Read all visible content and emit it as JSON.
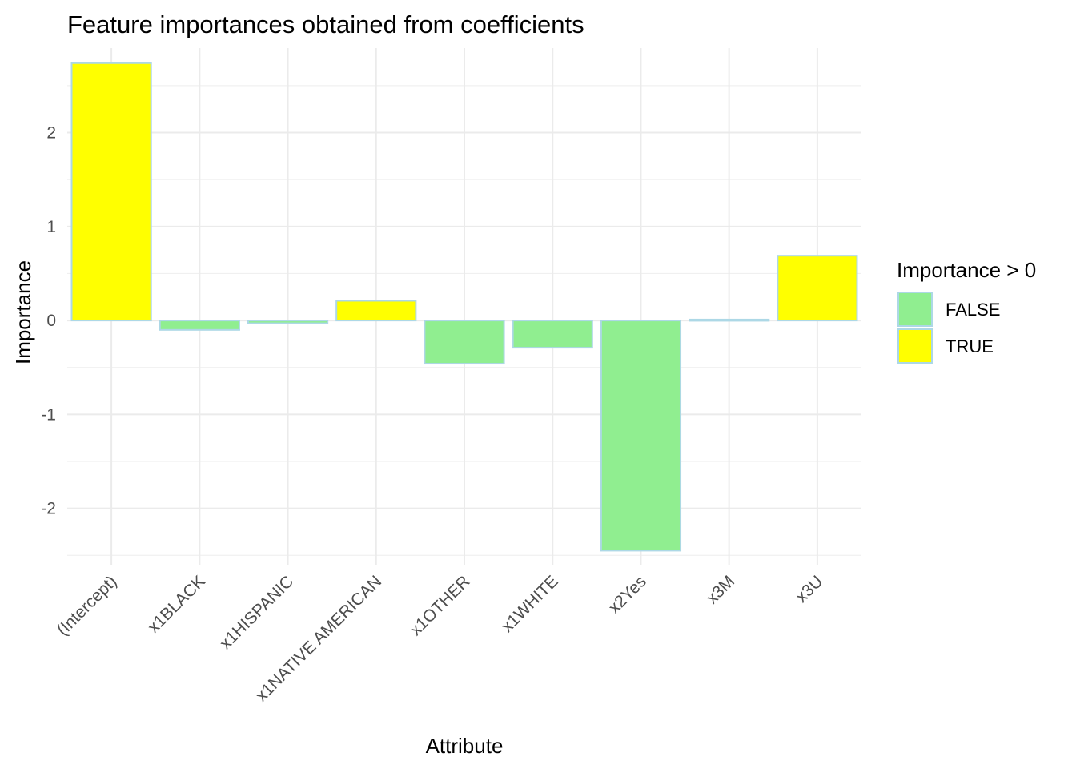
{
  "chart_data": {
    "type": "bar",
    "title": "Feature importances obtained from coefficients",
    "xlabel": "Attribute",
    "ylabel": "Importance",
    "categories": [
      "(Intercept)",
      "x1BLACK",
      "x1HISPANIC",
      "x1NATIVE AMERICAN",
      "x1OTHER",
      "x1WHITE",
      "x2Yes",
      "x3M",
      "x3U"
    ],
    "values": [
      2.74,
      -0.1,
      -0.03,
      0.21,
      -0.46,
      -0.29,
      -2.45,
      0.01,
      0.69
    ],
    "ylim": [
      -2.6,
      2.9
    ],
    "yticks": [
      -2,
      -1,
      0,
      1,
      2
    ],
    "grid": true,
    "bar_outline_color": "#add8e6",
    "legend": {
      "title": "Importance > 0",
      "placement": "right",
      "entries": [
        {
          "label": "FALSE",
          "color": "#90ee90"
        },
        {
          "label": "TRUE",
          "color": "#ffff00"
        }
      ]
    }
  }
}
